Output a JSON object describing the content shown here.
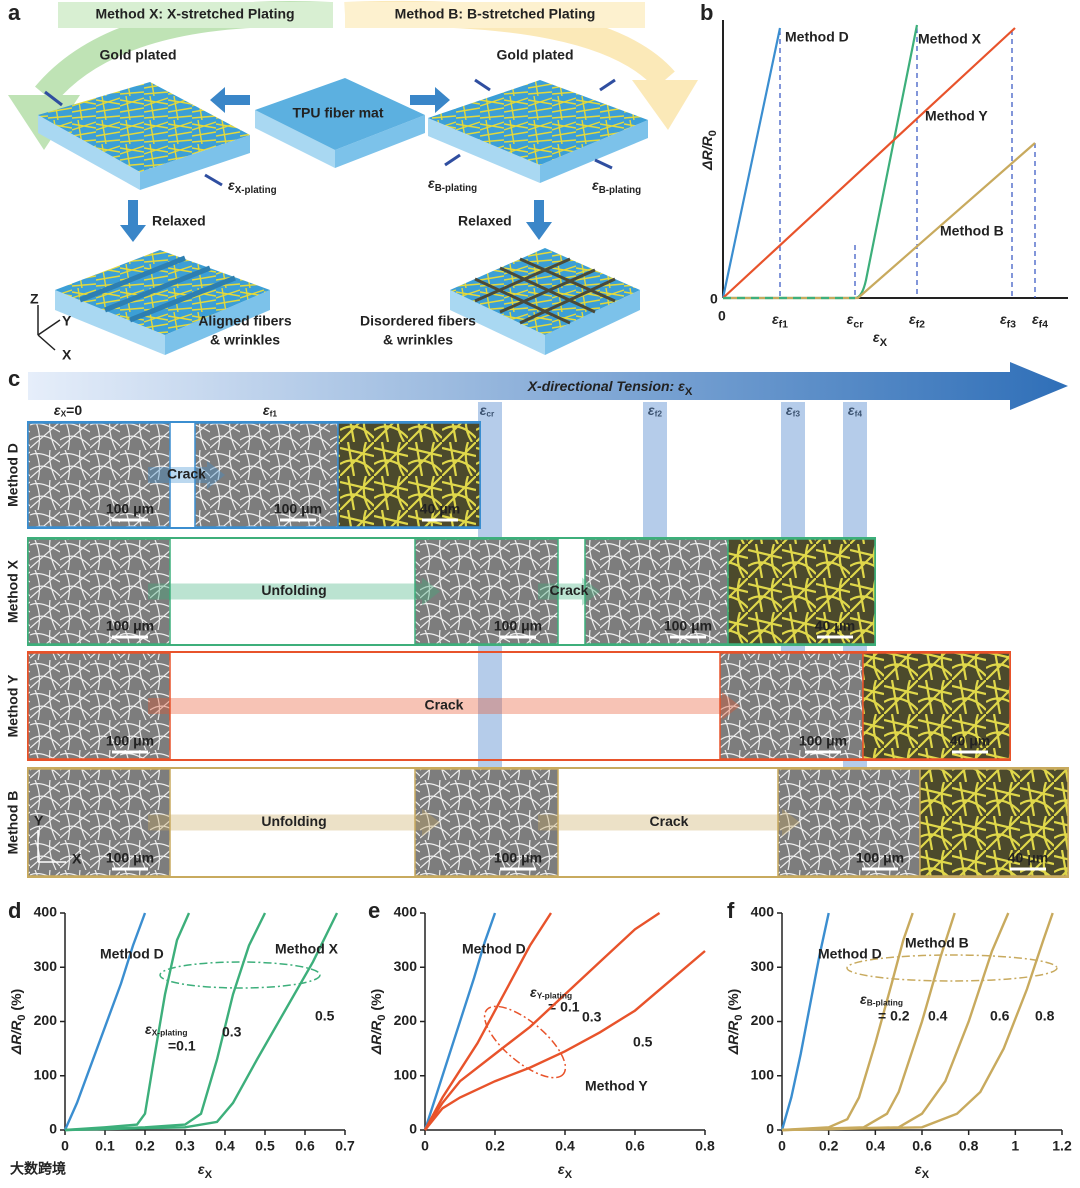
{
  "panel_labels": [
    "a",
    "b",
    "c",
    "d",
    "e",
    "f"
  ],
  "panel_a": {
    "method_x": "Method X: X-stretched Plating",
    "method_b": "Method B: B-stretched Plating",
    "gold_plated_left": "Gold plated",
    "gold_plated_right": "Gold plated",
    "center": "TPU fiber mat",
    "strain_x": {
      "main": "ε",
      "sub": "X-plating"
    },
    "strain_b_left": {
      "main": "ε",
      "sub": "B-plating"
    },
    "strain_b_right": {
      "main": "ε",
      "sub": "B-plating"
    },
    "relaxed_left": "Relaxed",
    "relaxed_right": "Relaxed",
    "aligned": [
      "Aligned fibers",
      "& wrinkles"
    ],
    "disordered": [
      "Disordered fibers",
      "& wrinkles"
    ],
    "axes": [
      "Z",
      "Y",
      "X"
    ]
  },
  "panel_b": {
    "y_label": {
      "main": "ΔR/R",
      "sub": "0"
    },
    "x_label": {
      "main": "ε",
      "sub": "X"
    },
    "origin_x": "0",
    "origin_y": "0",
    "strains": [
      {
        "main": "ε",
        "sub": "f1"
      },
      {
        "main": "ε",
        "sub": "cr"
      },
      {
        "main": "ε",
        "sub": "f2"
      },
      {
        "main": "ε",
        "sub": "f3"
      },
      {
        "main": "ε",
        "sub": "f4"
      }
    ],
    "curves": [
      "Method D",
      "Method X",
      "Method Y",
      "Method B"
    ]
  },
  "panel_c": {
    "title": {
      "main": "X-directional Tension: ε",
      "sub": "X"
    },
    "strains": [
      {
        "main": "ε",
        "sub": "X",
        "tail": "=0"
      },
      {
        "main": "ε",
        "sub": "f1"
      },
      {
        "main": "ε",
        "sub": "cr"
      },
      {
        "main": "ε",
        "sub": "f2"
      },
      {
        "main": "ε",
        "sub": "f3"
      },
      {
        "main": "ε",
        "sub": "f4"
      }
    ],
    "rows": [
      {
        "name": "Method D",
        "scale_bars": [
          "100 μm",
          "100 μm",
          "40 μm"
        ],
        "arrows": [
          "Crack"
        ]
      },
      {
        "name": "Method X",
        "scale_bars": [
          "100 μm",
          "100 μm",
          "100 μm",
          "40 μm"
        ],
        "arrows": [
          "Unfolding",
          "Crack"
        ]
      },
      {
        "name": "Method Y",
        "scale_bars": [
          "100 μm",
          "100 μm",
          "40 μm"
        ],
        "arrows": [
          "Crack"
        ]
      },
      {
        "name": "Method B",
        "scale_bars": [
          "100 μm",
          "100 μm",
          "100 μm",
          "40 μm"
        ],
        "arrows": [
          "Unfolding",
          "Crack"
        ]
      }
    ],
    "axes": [
      "Y",
      "X"
    ]
  },
  "chart_data": [
    {
      "type": "line",
      "x_label": {
        "main": "ε",
        "sub": "X"
      },
      "y_label": {
        "main": "ΔR/R",
        "sub": "0",
        "tail": " (%)"
      },
      "xlim": [
        0,
        0.7
      ],
      "xticks": [
        0,
        0.1,
        0.2,
        0.3,
        0.4,
        0.5,
        0.6,
        0.7
      ],
      "ylim": [
        0,
        400
      ],
      "yticks": [
        0,
        100,
        200,
        300,
        400
      ],
      "group_label": "Method X",
      "param_label": {
        "main": "ε",
        "sub": "X-plating"
      },
      "series": [
        {
          "name": "Method D",
          "color": "#3b8ed0",
          "x": [
            0,
            0.03,
            0.06,
            0.1,
            0.14,
            0.17,
            0.2
          ],
          "values": [
            0,
            50,
            110,
            190,
            270,
            340,
            400
          ]
        },
        {
          "name": "=0.1",
          "color": "#3daf7b",
          "x": [
            0,
            0.1,
            0.18,
            0.2,
            0.22,
            0.25,
            0.28,
            0.31
          ],
          "values": [
            0,
            5,
            10,
            30,
            120,
            250,
            350,
            400
          ]
        },
        {
          "name": "0.3",
          "color": "#3daf7b",
          "x": [
            0,
            0.2,
            0.3,
            0.34,
            0.38,
            0.42,
            0.46,
            0.5
          ],
          "values": [
            0,
            5,
            10,
            30,
            130,
            250,
            340,
            400
          ]
        },
        {
          "name": "0.5",
          "color": "#3daf7b",
          "x": [
            0,
            0.3,
            0.38,
            0.42,
            0.48,
            0.55,
            0.62,
            0.68
          ],
          "values": [
            0,
            5,
            15,
            50,
            130,
            220,
            310,
            400
          ]
        }
      ]
    },
    {
      "type": "line",
      "x_label": {
        "main": "ε",
        "sub": "X"
      },
      "y_label": {
        "main": "ΔR/R",
        "sub": "0",
        "tail": " (%)"
      },
      "xlim": [
        0,
        0.8
      ],
      "xticks": [
        0,
        0.2,
        0.4,
        0.6,
        0.8
      ],
      "ylim": [
        0,
        400
      ],
      "yticks": [
        0,
        100,
        200,
        300,
        400
      ],
      "group_label": "Method Y",
      "param_label": {
        "main": "ε",
        "sub": "Y-plating"
      },
      "series": [
        {
          "name": "Method D",
          "color": "#3b8ed0",
          "x": [
            0,
            0.03,
            0.06,
            0.1,
            0.14,
            0.17,
            0.2
          ],
          "values": [
            0,
            60,
            120,
            200,
            280,
            345,
            400
          ]
        },
        {
          "name": "= 0.1",
          "color": "#e8532b",
          "x": [
            0,
            0.05,
            0.1,
            0.15,
            0.2,
            0.25,
            0.3,
            0.36
          ],
          "values": [
            0,
            60,
            110,
            160,
            220,
            280,
            340,
            400
          ]
        },
        {
          "name": "0.3",
          "color": "#e8532b",
          "x": [
            0,
            0.05,
            0.1,
            0.2,
            0.3,
            0.4,
            0.5,
            0.6,
            0.67
          ],
          "values": [
            0,
            50,
            90,
            140,
            190,
            250,
            310,
            370,
            400
          ]
        },
        {
          "name": "0.5",
          "color": "#e8532b",
          "x": [
            0,
            0.05,
            0.1,
            0.2,
            0.3,
            0.4,
            0.5,
            0.6,
            0.7,
            0.8
          ],
          "values": [
            0,
            40,
            60,
            90,
            115,
            145,
            180,
            220,
            275,
            330
          ]
        }
      ]
    },
    {
      "type": "line",
      "x_label": {
        "main": "ε",
        "sub": "X"
      },
      "y_label": {
        "main": "ΔR/R",
        "sub": "0",
        "tail": " (%)"
      },
      "xlim": [
        0,
        1.2
      ],
      "xticks": [
        0,
        0.2,
        0.4,
        0.6,
        0.8,
        1,
        1.2
      ],
      "ylim": [
        0,
        400
      ],
      "yticks": [
        0,
        100,
        200,
        300,
        400
      ],
      "group_label": "Method B",
      "param_label": {
        "main": "ε",
        "sub": "B-plating"
      },
      "series": [
        {
          "name": "Method D",
          "color": "#3b8ed0",
          "x": [
            0,
            0.04,
            0.08,
            0.12,
            0.16,
            0.2
          ],
          "values": [
            0,
            60,
            140,
            230,
            320,
            400
          ]
        },
        {
          "name": "= 0.2",
          "color": "#c8aa5e",
          "x": [
            0,
            0.2,
            0.28,
            0.33,
            0.4,
            0.47,
            0.52,
            0.56
          ],
          "values": [
            0,
            5,
            20,
            60,
            160,
            270,
            350,
            400
          ]
        },
        {
          "name": "0.4",
          "color": "#c8aa5e",
          "x": [
            0,
            0.35,
            0.45,
            0.5,
            0.6,
            0.68,
            0.74
          ],
          "values": [
            0,
            5,
            30,
            70,
            200,
            320,
            400
          ]
        },
        {
          "name": "0.6",
          "color": "#c8aa5e",
          "x": [
            0,
            0.5,
            0.6,
            0.7,
            0.8,
            0.9,
            0.97
          ],
          "values": [
            0,
            5,
            30,
            90,
            200,
            330,
            400
          ]
        },
        {
          "name": "0.8",
          "color": "#c8aa5e",
          "x": [
            0,
            0.6,
            0.75,
            0.85,
            0.95,
            1.05,
            1.12,
            1.16
          ],
          "values": [
            0,
            5,
            30,
            70,
            150,
            260,
            350,
            400
          ]
        }
      ]
    }
  ],
  "watermark": "大数跨境"
}
